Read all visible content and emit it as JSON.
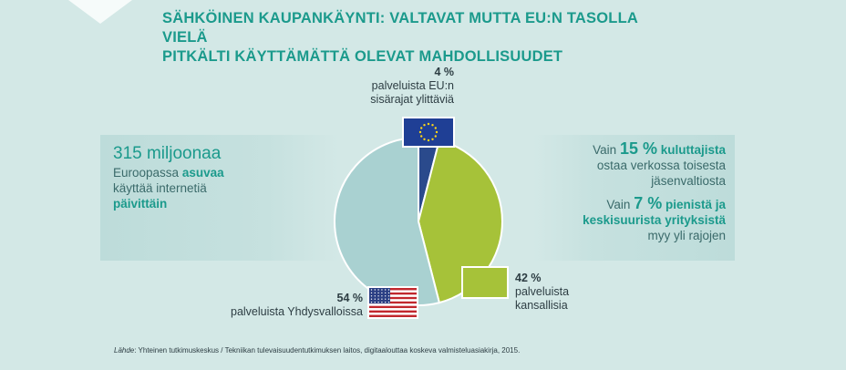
{
  "title": {
    "line1": "SÄHKÖINEN KAUPANKÄYNTI: VALTAVAT MUTTA EU:N TASOLLA VIELÄ",
    "line2": "PITKÄLTI KÄYTTÄMÄTTÄ OLEVAT MAHDOLLISUUDET"
  },
  "left_panel": {
    "big": "315 miljoonaa",
    "line1_pre": "Euroopassa ",
    "line1_bold": "asuvaa",
    "line2": "käyttää internetiä",
    "line3_bold": "päivittäin"
  },
  "right_panel": {
    "fact1_pre": "Vain ",
    "fact1_em": "15 %",
    "fact1_bold": " kuluttajista",
    "fact1_line2": "ostaa verkossa toisesta",
    "fact1_line3": "jäsenvaltiosta",
    "fact2_pre": "Vain ",
    "fact2_em": "7 %",
    "fact2_bold": " pienistä ja",
    "fact2_bold_line2": "keskisuurista yrityksistä",
    "fact2_line3": "myy yli rajojen"
  },
  "labels": {
    "eu_pct": "4 %",
    "eu_line1": "palveluista EU:n",
    "eu_line2": "sisärajat ylittäviä",
    "us_pct": "54 %",
    "us_line1": "palveluista Yhdysvalloissa",
    "fi_pct": "42 %",
    "fi_line1": "palveluista",
    "fi_line2": "kansallisia"
  },
  "source": {
    "label": "Lähde",
    "text": ": Yhteinen tutkimuskeskus / Tekniikan tulevaisuudentutkimuksen laitos, digitaalouttaa koskeva valmisteluasiakirja, 2015."
  },
  "colors": {
    "background": "#d3e8e6",
    "accent": "#1b9a8c",
    "eu": "#2a4a8c",
    "national": "#a6c239",
    "us": "#a9d1d1"
  },
  "chart_data": {
    "type": "pie",
    "slices": [
      {
        "label": "palveluista EU:n sisärajat ylittäviä",
        "value": 4,
        "color": "#2a4a8c"
      },
      {
        "label": "palveluista kansallisia",
        "value": 42,
        "color": "#a6c239"
      },
      {
        "label": "palveluista Yhdysvalloissa",
        "value": 54,
        "color": "#a9d1d1"
      }
    ],
    "legend": "none"
  }
}
